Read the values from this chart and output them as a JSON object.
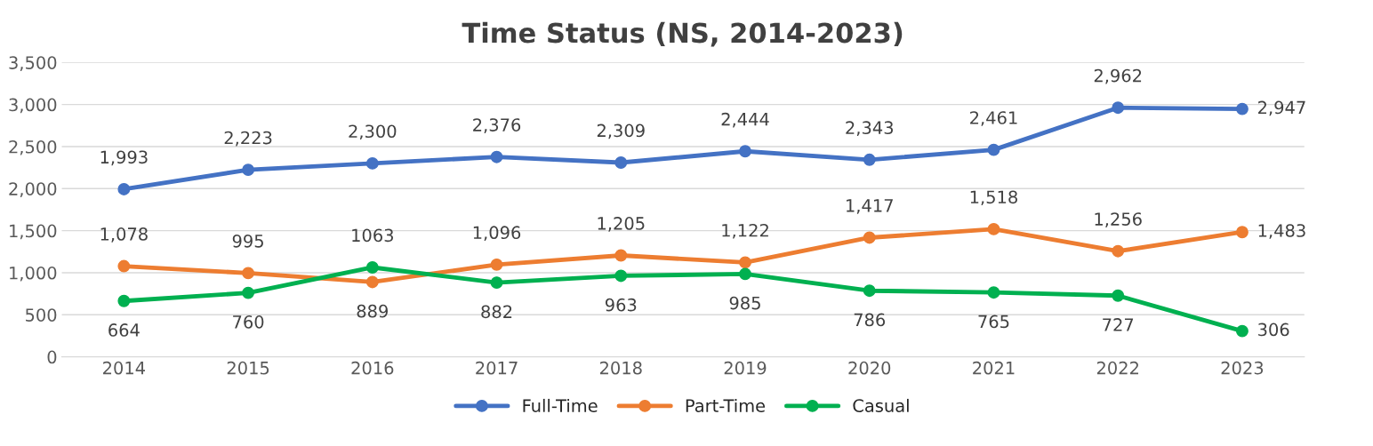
{
  "chart_data": {
    "type": "line",
    "title": "Time Status (NS, 2014-2023)",
    "categories": [
      "2014",
      "2015",
      "2016",
      "2017",
      "2018",
      "2019",
      "2020",
      "2021",
      "2022",
      "2023"
    ],
    "series": [
      {
        "name": "Full-Time",
        "color": "#4472c4",
        "values": [
          1993,
          2223,
          2300,
          2376,
          2309,
          2444,
          2343,
          2461,
          2962,
          2947
        ],
        "value_labels": [
          "1,993",
          "2,223",
          "2,300",
          "2,376",
          "2,309",
          "2,444",
          "2,343",
          "2,461",
          "2,962",
          "2,947"
        ]
      },
      {
        "name": "Part-Time",
        "color": "#ed7d31",
        "values": [
          1078,
          995,
          889,
          1096,
          1205,
          1122,
          1417,
          1518,
          1256,
          1483
        ],
        "value_labels": [
          "1,078",
          "995",
          "889",
          "1,096",
          "1,205",
          "1,122",
          "1,417",
          "1,518",
          "1,256",
          "1,483"
        ]
      },
      {
        "name": "Casual",
        "color": "#00b050",
        "values": [
          664,
          760,
          1063,
          882,
          963,
          985,
          786,
          765,
          727,
          306
        ],
        "value_labels": [
          "664",
          "760",
          "1063",
          "882",
          "963",
          "985",
          "786",
          "765",
          "727",
          "306"
        ]
      }
    ],
    "ylim": [
      0,
      3500
    ],
    "yticks": [
      {
        "value": 0,
        "label": "0"
      },
      {
        "value": 500,
        "label": "500"
      },
      {
        "value": 1000,
        "label": "1,000"
      },
      {
        "value": 1500,
        "label": "1,500"
      },
      {
        "value": 2000,
        "label": "2,000"
      },
      {
        "value": 2500,
        "label": "2,500"
      },
      {
        "value": 3000,
        "label": "3,000"
      },
      {
        "value": 3500,
        "label": "3,500"
      }
    ],
    "grid": "y",
    "legend": "bottom",
    "marker": "circle",
    "line_style": "solid"
  }
}
